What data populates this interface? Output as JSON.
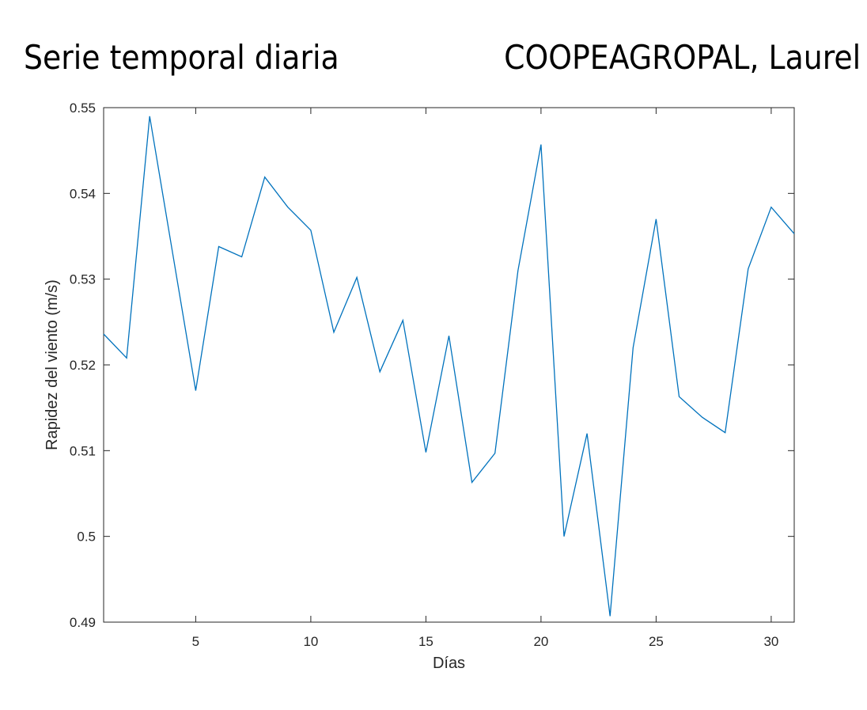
{
  "title_left": "Serie temporal diaria",
  "title_right": "COOPEAGROPAL, Laurel",
  "chart_data": {
    "type": "line",
    "xlabel": "Días",
    "ylabel": "Rapidez del viento (m/s)",
    "xlim": [
      1,
      31
    ],
    "ylim": [
      0.49,
      0.55
    ],
    "xticks": [
      5,
      10,
      15,
      20,
      25,
      30
    ],
    "xtick_labels": [
      "5",
      "10",
      "15",
      "20",
      "25",
      "30"
    ],
    "yticks": [
      0.49,
      0.5,
      0.51,
      0.52,
      0.53,
      0.54,
      0.55
    ],
    "ytick_labels": [
      "0.49",
      "0.5",
      "0.51",
      "0.52",
      "0.53",
      "0.54",
      "0.55"
    ],
    "grid": false,
    "series": [
      {
        "color": "#0072bd",
        "x": [
          1,
          2,
          3,
          4,
          5,
          6,
          7,
          8,
          9,
          10,
          11,
          12,
          13,
          14,
          15,
          16,
          17,
          18,
          19,
          20,
          21,
          22,
          23,
          24,
          25,
          26,
          27,
          28,
          29,
          30,
          31
        ],
        "values": [
          0.5236,
          0.5208,
          0.549,
          0.533,
          0.517,
          0.5338,
          0.5326,
          0.5419,
          0.5384,
          0.5357,
          0.5238,
          0.5302,
          0.5192,
          0.5252,
          0.5098,
          0.5234,
          0.5063,
          0.5097,
          0.531,
          0.5457,
          0.5,
          0.512,
          0.4907,
          0.522,
          0.537,
          0.5163,
          0.5139,
          0.5121,
          0.5312,
          0.5384,
          0.5353
        ]
      }
    ]
  }
}
